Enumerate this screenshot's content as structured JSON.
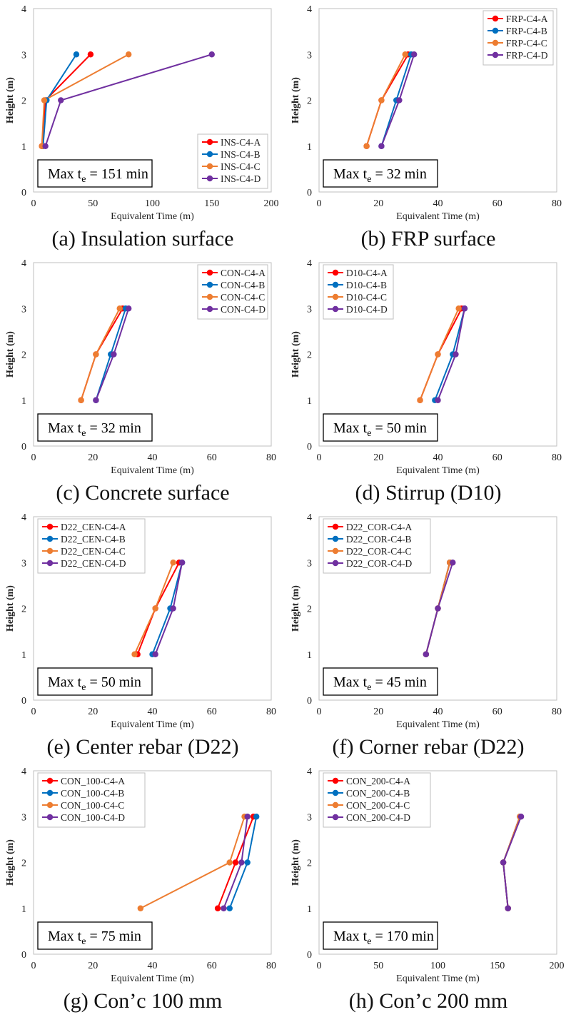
{
  "colors": {
    "A": "#ff0000",
    "B": "#0070c0",
    "C": "#ed7d31",
    "D": "#7030a0"
  },
  "y_values": [
    1,
    2,
    3
  ],
  "chart_data": [
    {
      "type": "line",
      "title": "",
      "caption": "(a) Insulation surface",
      "xlabel": "Equivalent Time (m)",
      "ylabel": "Height (m)",
      "xlim": [
        0,
        200
      ],
      "xticks": [
        0,
        50,
        100,
        150,
        200
      ],
      "ylim": [
        0,
        4
      ],
      "yticks": [
        0,
        1,
        2,
        3,
        4
      ],
      "legend": "bottom-right",
      "max_label": {
        "prefix": "Max t",
        "sub": "e",
        "suffix": " = 151 min"
      },
      "series": [
        {
          "name": "INS-C4-A",
          "color": "#ff0000",
          "x": [
            7,
            10,
            48
          ],
          "y": [
            1,
            2,
            3
          ]
        },
        {
          "name": "INS-C4-B",
          "color": "#0070c0",
          "x": [
            8,
            11,
            36
          ],
          "y": [
            1,
            2,
            3
          ]
        },
        {
          "name": "INS-C4-C",
          "color": "#ed7d31",
          "x": [
            7,
            9,
            80
          ],
          "y": [
            1,
            2,
            3
          ]
        },
        {
          "name": "INS-C4-D",
          "color": "#7030a0",
          "x": [
            10,
            23,
            150
          ],
          "y": [
            1,
            2,
            3
          ]
        }
      ]
    },
    {
      "type": "line",
      "title": "",
      "caption": "(b) FRP surface",
      "xlabel": "Equivalent Time (m)",
      "ylabel": "Height (m)",
      "xlim": [
        0,
        80
      ],
      "xticks": [
        0,
        20,
        40,
        60,
        80
      ],
      "ylim": [
        0,
        4
      ],
      "yticks": [
        0,
        1,
        2,
        3,
        4
      ],
      "legend": "top-right",
      "max_label": {
        "prefix": "Max t",
        "sub": "e",
        "suffix": " = 32 min"
      },
      "series": [
        {
          "name": "FRP-C4-A",
          "color": "#ff0000",
          "x": [
            16,
            21,
            30
          ],
          "y": [
            1,
            2,
            3
          ]
        },
        {
          "name": "FRP-C4-B",
          "color": "#0070c0",
          "x": [
            21,
            26,
            31
          ],
          "y": [
            1,
            2,
            3
          ]
        },
        {
          "name": "FRP-C4-C",
          "color": "#ed7d31",
          "x": [
            16,
            21,
            29
          ],
          "y": [
            1,
            2,
            3
          ]
        },
        {
          "name": "FRP-C4-D",
          "color": "#7030a0",
          "x": [
            21,
            27,
            32
          ],
          "y": [
            1,
            2,
            3
          ]
        }
      ]
    },
    {
      "type": "line",
      "title": "",
      "caption": "(c) Concrete surface",
      "xlabel": "Equivalent Time (m)",
      "ylabel": "Height (m)",
      "xlim": [
        0,
        80
      ],
      "xticks": [
        0,
        20,
        40,
        60,
        80
      ],
      "ylim": [
        0,
        4
      ],
      "yticks": [
        0,
        1,
        2,
        3,
        4
      ],
      "legend": "top-right",
      "max_label": {
        "prefix": "Max t",
        "sub": "e",
        "suffix": " = 32 min"
      },
      "series": [
        {
          "name": "CON-C4-A",
          "color": "#ff0000",
          "x": [
            16,
            21,
            30
          ],
          "y": [
            1,
            2,
            3
          ]
        },
        {
          "name": "CON-C4-B",
          "color": "#0070c0",
          "x": [
            21,
            26,
            31
          ],
          "y": [
            1,
            2,
            3
          ]
        },
        {
          "name": "CON-C4-C",
          "color": "#ed7d31",
          "x": [
            16,
            21,
            29
          ],
          "y": [
            1,
            2,
            3
          ]
        },
        {
          "name": "CON-C4-D",
          "color": "#7030a0",
          "x": [
            21,
            27,
            32
          ],
          "y": [
            1,
            2,
            3
          ]
        }
      ]
    },
    {
      "type": "line",
      "title": "",
      "caption": "(d) Stirrup (D10)",
      "xlabel": "Equivalent Time (m)",
      "ylabel": "Height (m)",
      "xlim": [
        0,
        80
      ],
      "xticks": [
        0,
        20,
        40,
        60,
        80
      ],
      "ylim": [
        0,
        4
      ],
      "yticks": [
        0,
        1,
        2,
        3,
        4
      ],
      "legend": "top-left",
      "max_label": {
        "prefix": "Max t",
        "sub": "e",
        "suffix": " = 50 min"
      },
      "series": [
        {
          "name": "D10-C4-A",
          "color": "#ff0000",
          "x": [
            34,
            40,
            48
          ],
          "y": [
            1,
            2,
            3
          ]
        },
        {
          "name": "D10-C4-B",
          "color": "#0070c0",
          "x": [
            39,
            45,
            49
          ],
          "y": [
            1,
            2,
            3
          ]
        },
        {
          "name": "D10-C4-C",
          "color": "#ed7d31",
          "x": [
            34,
            40,
            47
          ],
          "y": [
            1,
            2,
            3
          ]
        },
        {
          "name": "D10-C4-D",
          "color": "#7030a0",
          "x": [
            40,
            46,
            49
          ],
          "y": [
            1,
            2,
            3
          ]
        }
      ]
    },
    {
      "type": "line",
      "title": "",
      "caption": "(e) Center rebar (D22)",
      "xlabel": "Equivalent Time (m)",
      "ylabel": "Height (m)",
      "xlim": [
        0,
        80
      ],
      "xticks": [
        0,
        20,
        40,
        60,
        80
      ],
      "ylim": [
        0,
        4
      ],
      "yticks": [
        0,
        1,
        2,
        3,
        4
      ],
      "legend": "top-left",
      "max_label": {
        "prefix": "Max t",
        "sub": "e",
        "suffix": " = 50 min"
      },
      "series": [
        {
          "name": "D22_CEN-C4-A",
          "color": "#ff0000",
          "x": [
            35,
            41,
            49
          ],
          "y": [
            1,
            2,
            3
          ]
        },
        {
          "name": "D22_CEN-C4-B",
          "color": "#0070c0",
          "x": [
            40,
            46,
            50
          ],
          "y": [
            1,
            2,
            3
          ]
        },
        {
          "name": "D22_CEN-C4-C",
          "color": "#ed7d31",
          "x": [
            34,
            41,
            47
          ],
          "y": [
            1,
            2,
            3
          ]
        },
        {
          "name": "D22_CEN-C4-D",
          "color": "#7030a0",
          "x": [
            41,
            47,
            50
          ],
          "y": [
            1,
            2,
            3
          ]
        }
      ]
    },
    {
      "type": "line",
      "title": "",
      "caption": "(f) Corner rebar (D22)",
      "xlabel": "Equivalent Time (m)",
      "ylabel": "Height (m)",
      "xlim": [
        0,
        80
      ],
      "xticks": [
        0,
        20,
        40,
        60,
        80
      ],
      "ylim": [
        0,
        4
      ],
      "yticks": [
        0,
        1,
        2,
        3,
        4
      ],
      "legend": "top-left",
      "max_label": {
        "prefix": "Max t",
        "sub": "e",
        "suffix": " = 45 min"
      },
      "series": [
        {
          "name": "D22_COR-C4-A",
          "color": "#ff0000",
          "x": [
            36,
            40,
            44
          ],
          "y": [
            1,
            2,
            3
          ]
        },
        {
          "name": "D22_COR-C4-B",
          "color": "#0070c0",
          "x": [
            36,
            40,
            44
          ],
          "y": [
            1,
            2,
            3
          ]
        },
        {
          "name": "D22_COR-C4-C",
          "color": "#ed7d31",
          "x": [
            36,
            40,
            44
          ],
          "y": [
            1,
            2,
            3
          ]
        },
        {
          "name": "D22_COR-C4-D",
          "color": "#7030a0",
          "x": [
            36,
            40,
            45
          ],
          "y": [
            1,
            2,
            3
          ]
        }
      ]
    },
    {
      "type": "line",
      "title": "",
      "caption": "(g) Con’c 100 mm",
      "xlabel": "Equivalent Time (m)",
      "ylabel": "Height (m)",
      "xlim": [
        0,
        80
      ],
      "xticks": [
        0,
        20,
        40,
        60,
        80
      ],
      "ylim": [
        0,
        4
      ],
      "yticks": [
        0,
        1,
        2,
        3,
        4
      ],
      "legend": "top-left",
      "max_label": {
        "prefix": "Max t",
        "sub": "e",
        "suffix": " = 75 min"
      },
      "series": [
        {
          "name": "CON_100-C4-A",
          "color": "#ff0000",
          "x": [
            62,
            68,
            74
          ],
          "y": [
            1,
            2,
            3
          ]
        },
        {
          "name": "CON_100-C4-B",
          "color": "#0070c0",
          "x": [
            66,
            72,
            75
          ],
          "y": [
            1,
            2,
            3
          ]
        },
        {
          "name": "CON_100-C4-C",
          "color": "#ed7d31",
          "x": [
            36,
            66,
            71
          ],
          "y": [
            1,
            2,
            3
          ]
        },
        {
          "name": "CON_100-C4-D",
          "color": "#7030a0",
          "x": [
            64,
            70,
            72
          ],
          "y": [
            1,
            2,
            3
          ]
        }
      ]
    },
    {
      "type": "line",
      "title": "",
      "caption": "(h) Con’c 200 mm",
      "xlabel": "Equivalent Time (m)",
      "ylabel": "Height (m)",
      "xlim": [
        0,
        200
      ],
      "xticks": [
        0,
        50,
        100,
        150,
        200
      ],
      "ylim": [
        0,
        4
      ],
      "yticks": [
        0,
        1,
        2,
        3,
        4
      ],
      "legend": "top-left",
      "max_label": {
        "prefix": "Max t",
        "sub": "e",
        "suffix": " = 170 min"
      },
      "series": [
        {
          "name": "CON_200-C4-A",
          "color": "#ff0000",
          "x": [
            159,
            155,
            169
          ],
          "y": [
            1,
            2,
            3
          ]
        },
        {
          "name": "CON_200-C4-B",
          "color": "#0070c0",
          "x": [
            159,
            155,
            169
          ],
          "y": [
            1,
            2,
            3
          ]
        },
        {
          "name": "CON_200-C4-C",
          "color": "#ed7d31",
          "x": [
            159,
            155,
            169
          ],
          "y": [
            1,
            2,
            3
          ]
        },
        {
          "name": "CON_200-C4-D",
          "color": "#7030a0",
          "x": [
            159,
            155,
            170
          ],
          "y": [
            1,
            2,
            3
          ]
        }
      ]
    }
  ]
}
